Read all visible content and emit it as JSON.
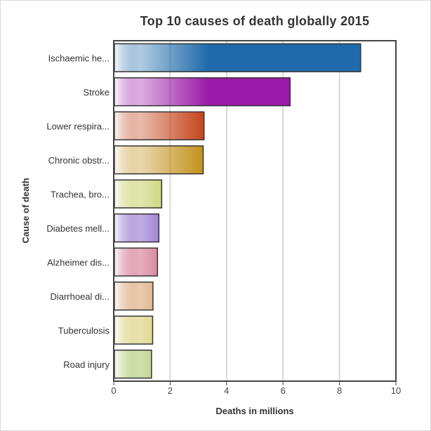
{
  "chart_data": {
    "type": "bar",
    "orientation": "horizontal",
    "title": "Top 10 causes of death globally 2015",
    "xlabel": "Deaths in millions",
    "ylabel": "Cause of death",
    "xlim": [
      0,
      10
    ],
    "xticks": [
      0,
      2,
      4,
      6,
      8,
      10
    ],
    "grid": true,
    "categories": [
      "Ischaemic he...",
      "Stroke",
      "Lower respira...",
      "Chronic obstr...",
      "Trachea, bro...",
      "Diabetes mell...",
      "Alzheimer dis...",
      "Diarrhoeal di...",
      "Tuberculosis",
      "Road injury"
    ],
    "values": [
      8.75,
      6.25,
      3.2,
      3.17,
      1.7,
      1.6,
      1.55,
      1.39,
      1.38,
      1.34
    ],
    "colors": [
      "#1f6aaa",
      "#9b19a8",
      "#c23d12",
      "#c08c12",
      "#a7b81a",
      "#4d18b0",
      "#b81a4a",
      "#c0671a",
      "#c0ad1a",
      "#7aa81a"
    ]
  }
}
